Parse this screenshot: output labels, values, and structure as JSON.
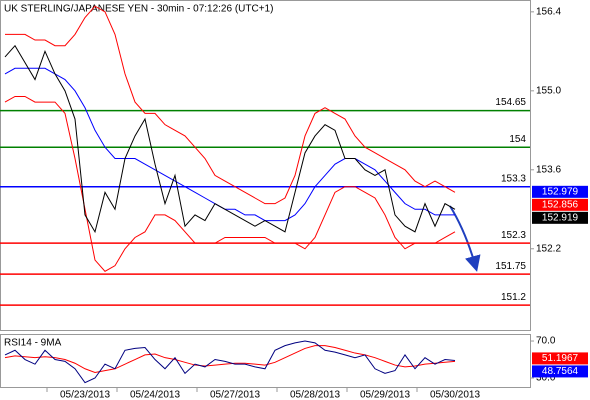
{
  "chart_data": [
    {
      "type": "line",
      "title": "UK STERLING/JAPANESE YEN - 30min - 07:12:26 (UTC+1)",
      "ylim": [
        150.76,
        156.61
      ],
      "yticks": [
        156.4,
        {
          "value": 155,
          "label": "155.0"
        },
        153.6,
        152.2
      ],
      "series": [
        {
          "color": "#ff0000",
          "values": [
            156.0,
            156.0,
            156.0,
            155.9,
            155.9,
            155.8,
            155.8,
            156.0,
            156.3,
            156.5,
            156.4,
            156.0,
            155.3,
            154.8,
            154.6,
            154.6,
            154.4,
            154.3,
            154.2,
            154.0,
            153.8,
            153.5,
            153.4,
            153.3,
            153.2,
            153.1,
            153.0,
            153.0,
            153.1,
            153.5,
            154.2,
            154.6,
            154.7,
            154.6,
            154.5,
            154.2,
            154.0,
            153.9,
            153.8,
            153.7,
            153.6,
            153.4,
            153.3,
            153.4,
            153.3,
            153.2
          ]
        },
        {
          "color": "#ff0000",
          "values": [
            154.8,
            154.9,
            154.9,
            154.8,
            154.8,
            154.8,
            154.6,
            153.8,
            152.9,
            152.0,
            151.8,
            151.9,
            152.2,
            152.4,
            152.5,
            152.8,
            152.8,
            152.7,
            152.5,
            152.3,
            152.3,
            152.3,
            152.4,
            152.4,
            152.4,
            152.4,
            152.4,
            152.3,
            152.3,
            152.3,
            152.2,
            152.4,
            152.8,
            153.2,
            153.3,
            153.3,
            153.2,
            153.1,
            152.8,
            152.4,
            152.2,
            152.3,
            152.3,
            152.3,
            152.4,
            152.5
          ]
        },
        {
          "color": "#0000ff",
          "values": [
            155.3,
            155.4,
            155.4,
            155.4,
            155.4,
            155.3,
            155.2,
            155.0,
            154.7,
            154.3,
            154.0,
            153.8,
            153.8,
            153.8,
            153.7,
            153.6,
            153.5,
            153.4,
            153.3,
            153.2,
            153.1,
            153.0,
            152.9,
            152.9,
            152.8,
            152.8,
            152.7,
            152.7,
            152.7,
            152.8,
            153.0,
            153.3,
            153.5,
            153.7,
            153.8,
            153.8,
            153.7,
            153.6,
            153.4,
            153.2,
            153.0,
            152.9,
            152.9,
            152.8,
            152.8,
            152.8
          ]
        },
        {
          "color": "#000000",
          "values": [
            155.6,
            155.8,
            155.5,
            155.2,
            155.7,
            155.3,
            155.0,
            154.5,
            152.8,
            152.5,
            153.2,
            152.9,
            153.8,
            154.2,
            154.5,
            153.7,
            153.0,
            153.5,
            152.6,
            152.8,
            152.7,
            153.0,
            152.9,
            152.8,
            152.7,
            152.6,
            152.7,
            152.6,
            152.5,
            153.2,
            153.9,
            154.2,
            154.4,
            154.3,
            153.8,
            153.8,
            153.6,
            153.5,
            153.6,
            152.8,
            152.6,
            152.5,
            153.0,
            152.6,
            153.0,
            152.9
          ]
        }
      ],
      "levels": [
        {
          "value": 154.65,
          "color": "#008000"
        },
        {
          "value": 154,
          "color": "#008000"
        },
        {
          "value": 153.3,
          "color": "#0000ff"
        },
        {
          "value": 152.3,
          "color": "#ff0000"
        },
        {
          "value": 151.75,
          "color": "#ff0000"
        },
        {
          "value": 151.2,
          "color": "#ff0000"
        }
      ],
      "tags": [
        {
          "value": 152.979,
          "color": "#0000ff"
        },
        {
          "value": 152.856,
          "color": "#ff0000"
        },
        {
          "value": 152.919,
          "color": "#000000"
        }
      ]
    },
    {
      "type": "line",
      "title": "RSI14 - 9MA",
      "ylim": [
        19.2,
        77.6
      ],
      "yticks": [
        {
          "value": 70,
          "label": "70.0"
        },
        {
          "value": 30,
          "label": "30.0"
        }
      ],
      "categories": [
        null,
        null,
        null,
        null,
        null,
        null,
        null,
        null,
        "05/23/2013",
        null,
        null,
        null,
        null,
        null,
        null,
        "05/24/2013",
        null,
        null,
        null,
        null,
        null,
        null,
        null,
        "05/27/2013",
        null,
        null,
        null,
        null,
        null,
        null,
        null,
        "05/28/2013",
        null,
        null,
        null,
        null,
        null,
        null,
        "05/29/2013",
        null,
        null,
        null,
        null,
        null,
        null,
        "05/30/2013"
      ],
      "series": [
        {
          "color": "#ff0000",
          "values": [
            52,
            54,
            53,
            52,
            53,
            52,
            50,
            46,
            40,
            36,
            38,
            40,
            45,
            50,
            55,
            56,
            52,
            50,
            47,
            44,
            43,
            44,
            45,
            46,
            46,
            45,
            44,
            47,
            52,
            57,
            62,
            65,
            65,
            63,
            60,
            57,
            55,
            52,
            48,
            44,
            42,
            43,
            45,
            46,
            47,
            48
          ]
        },
        {
          "color": "#000080",
          "values": [
            55,
            60,
            50,
            45,
            60,
            50,
            48,
            40,
            25,
            30,
            45,
            40,
            60,
            62,
            63,
            50,
            40,
            52,
            35,
            45,
            42,
            50,
            48,
            45,
            45,
            42,
            40,
            60,
            65,
            68,
            70,
            68,
            60,
            58,
            55,
            52,
            55,
            40,
            35,
            38,
            55,
            40,
            52,
            45,
            50,
            49
          ]
        }
      ],
      "tags": [
        {
          "value": 51.1967,
          "color": "#ff0000"
        },
        {
          "value": 48.7564,
          "color": "#0000ff"
        }
      ]
    }
  ]
}
